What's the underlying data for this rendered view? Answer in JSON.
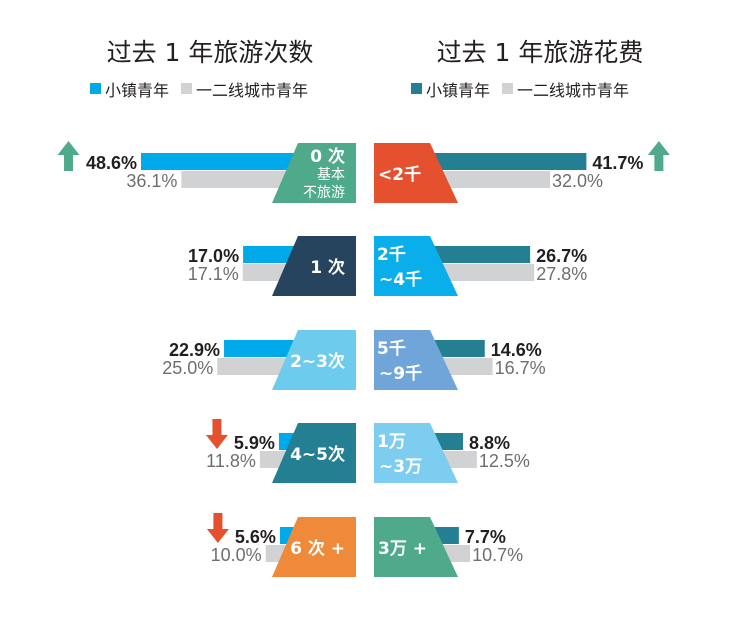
{
  "chart_data": [
    {
      "type": "bar",
      "title": "过去 1 年旅游次数",
      "legend": [
        {
          "name": "小镇青年",
          "color": "#00a9ea"
        },
        {
          "name": "一二线城市青年",
          "color": "#d1d2d4"
        }
      ],
      "legend_position": "top",
      "categories": [
        {
          "label": [
            "0 次"
          ],
          "sub": [
            "基本",
            "不旅游"
          ],
          "color": "#4faa8c",
          "trend": "up"
        },
        {
          "label": [
            "1 次"
          ],
          "color": "#27445e",
          "trend": ""
        },
        {
          "label": [
            "2~3次"
          ],
          "color": "#6dcbee",
          "trend": ""
        },
        {
          "label": [
            "4~5次"
          ],
          "color": "#237f91",
          "trend": "down"
        },
        {
          "label": [
            "6 次 +"
          ],
          "color": "#ee8a3a",
          "trend": "down"
        }
      ],
      "series": [
        {
          "name": "小镇青年",
          "values": [
            48.6,
            17.0,
            22.9,
            5.9,
            5.6
          ],
          "display": [
            "48.6%",
            "17.0%",
            "22.9%",
            "5.9%",
            "5.6%"
          ]
        },
        {
          "name": "一二线城市青年",
          "values": [
            36.1,
            17.1,
            25.0,
            11.8,
            10.0
          ],
          "display": [
            "36.1%",
            "17.1%",
            "25.0%",
            "11.8%",
            "10.0%"
          ]
        }
      ],
      "direction": "left"
    },
    {
      "type": "bar",
      "title": "过去 1 年旅游花费",
      "legend": [
        {
          "name": "小镇青年",
          "color": "#237f91"
        },
        {
          "name": "一二线城市青年",
          "color": "#d1d2d4"
        }
      ],
      "legend_position": "top",
      "categories": [
        {
          "label": [
            "<2千"
          ],
          "color": "#e5502f",
          "trend": "up"
        },
        {
          "label": [
            "2千",
            "~4千"
          ],
          "color": "#0aaeea",
          "trend": ""
        },
        {
          "label": [
            "5千",
            "~9千"
          ],
          "color": "#6fa5d8",
          "trend": ""
        },
        {
          "label": [
            "1万",
            "~3万"
          ],
          "color": "#7ccdf0",
          "trend": ""
        },
        {
          "label": [
            "3万 +"
          ],
          "color": "#4faa8c",
          "trend": ""
        }
      ],
      "series": [
        {
          "name": "小镇青年",
          "values": [
            41.7,
            26.7,
            14.6,
            8.8,
            7.7
          ],
          "display": [
            "41.7%",
            "26.7%",
            "14.6%",
            "8.8%",
            "7.7%"
          ]
        },
        {
          "name": "一二线城市青年",
          "values": [
            32.0,
            27.8,
            16.7,
            12.5,
            10.7
          ],
          "display": [
            "32.0%",
            "27.8%",
            "16.7%",
            "12.5%",
            "10.7%"
          ]
        }
      ],
      "direction": "right"
    }
  ],
  "colors": {
    "up": "#4faa8c",
    "down": "#e5502f",
    "gray": "#d1d2d4"
  }
}
